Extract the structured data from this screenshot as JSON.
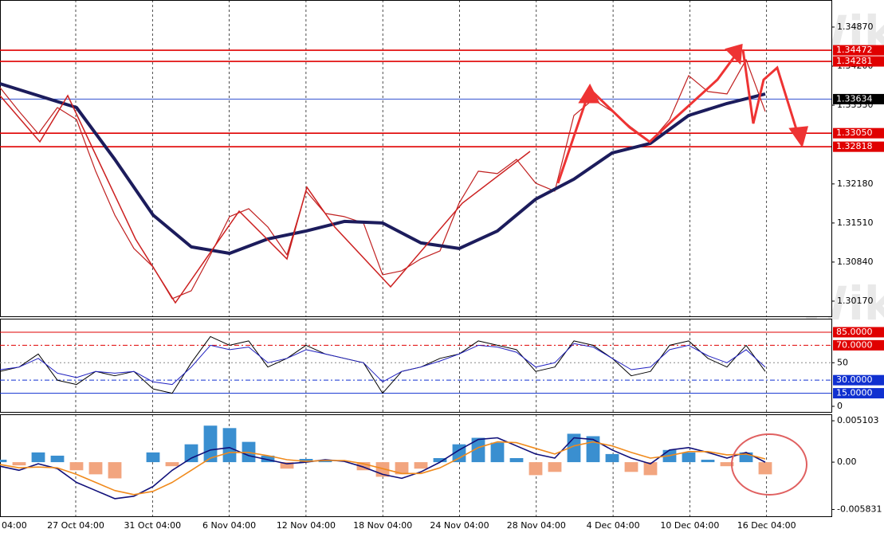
{
  "watermark": "WikiFX",
  "chart_data": [
    {
      "type": "line",
      "ylim": [
        1.2991,
        1.35334
      ],
      "yticks": [
        {
          "value": 1.3487,
          "label": "1.34870"
        },
        {
          "value": 1.342,
          "label": "1.34200"
        },
        {
          "value": 1.3353,
          "label": "1.33530"
        },
        {
          "value": 1.3218,
          "label": "1.32180"
        },
        {
          "value": 1.3151,
          "label": "1.31510"
        },
        {
          "value": 1.3084,
          "label": "1.30840"
        },
        {
          "value": 1.3017,
          "label": "1.30170"
        }
      ],
      "levels": [
        {
          "value": 1.34472,
          "label": "1.34472",
          "color": "#e00000"
        },
        {
          "value": 1.34281,
          "label": "1.34281",
          "color": "#e00000"
        },
        {
          "value": 1.33634,
          "label": "1.33634",
          "color": "#000000",
          "line_color": "#3050d0"
        },
        {
          "value": 1.3305,
          "label": "1.33050",
          "color": "#e00000"
        },
        {
          "value": 1.32818,
          "label": "1.32818",
          "color": "#e00000"
        }
      ],
      "series": [
        {
          "color": "#c02020",
          "width": 1.2,
          "values": [
            1.33832,
            1.33422,
            1.3304,
            1.3349,
            1.33285,
            1.32398,
            1.31646,
            1.31073,
            1.30758,
            1.30212,
            1.30349,
            1.30963,
            1.31619,
            1.31756,
            1.31441,
            1.30963,
            1.32056,
            1.31674,
            1.31619,
            1.3151,
            1.30622,
            1.3069,
            1.30895,
            1.31032,
            1.31851,
            1.32398,
            1.32357,
            1.32602,
            1.32193,
            1.32056,
            1.33354,
            1.33627,
            1.33422,
            1.33149,
            1.32903,
            1.33285,
            1.34037,
            1.33764,
            1.33723,
            1.3431,
            1.33422
          ]
        },
        {
          "color": "#1c1c5c",
          "width": 4,
          "values": [
            1.339,
            1.33695,
            1.3349,
            1.32602,
            1.31646,
            1.311,
            1.3099,
            1.31236,
            1.31373,
            1.31537,
            1.3151,
            1.31168,
            1.31073,
            1.31373,
            1.31919,
            1.32261,
            1.32712,
            1.32876,
            1.33354,
            1.33559,
            1.33723
          ]
        }
      ]
    },
    {
      "type": "line",
      "ylim": [
        -6.4,
        100.5
      ],
      "yticks": [
        50,
        0
      ],
      "levels": [
        {
          "value": 85,
          "label": "85.0000",
          "color": "#e00000"
        },
        {
          "value": 70,
          "label": "70.0000",
          "color": "#e00000",
          "dash": true
        },
        {
          "value": 30,
          "label": "30.0000",
          "color": "#1030d0",
          "dash": true
        },
        {
          "value": 15,
          "label": "15.0000",
          "color": "#1030d0"
        }
      ],
      "series": [
        {
          "color": "#000000",
          "width": 1,
          "values": [
            40,
            45,
            60,
            30,
            25,
            40,
            35,
            40,
            20,
            15,
            50,
            80,
            70,
            75,
            45,
            55,
            70,
            60,
            55,
            50,
            15,
            40,
            45,
            55,
            60,
            75,
            70,
            65,
            40,
            45,
            75,
            70,
            55,
            35,
            40,
            70,
            75,
            55,
            45,
            70,
            40
          ]
        },
        {
          "color": "#2020c0",
          "width": 1,
          "values": [
            42,
            45,
            55,
            38,
            33,
            40,
            38,
            40,
            28,
            25,
            45,
            70,
            65,
            68,
            50,
            55,
            65,
            60,
            55,
            50,
            28,
            40,
            45,
            52,
            60,
            70,
            68,
            62,
            45,
            50,
            72,
            68,
            55,
            42,
            45,
            65,
            70,
            58,
            50,
            65,
            45
          ]
        }
      ]
    },
    {
      "type": "combo",
      "ylim": [
        -0.00667,
        0.0059
      ],
      "yticks": [
        0.005103,
        {
          "value": 0,
          "label": "0.00"
        },
        -0.005831
      ],
      "xticks": [
        "04:00",
        "27 Oct 04:00",
        "31 Oct 04:00",
        "6 Nov 04:00",
        "12 Nov 04:00",
        "18 Nov 04:00",
        "24 Nov 04:00",
        "28 Nov 04:00",
        "4 Dec 04:00",
        "10 Dec 04:00",
        "16 Dec 04:00"
      ],
      "bars": {
        "positive": "#3a8fd0",
        "negative": "#f2a57f",
        "values": [
          0.0003,
          -0.0004,
          0.0012,
          0.0008,
          -0.001,
          -0.0015,
          -0.002,
          0.0,
          0.0012,
          -0.0005,
          0.0022,
          0.0045,
          0.0042,
          0.0025,
          0.0008,
          -0.0008,
          0.0004,
          0.0002,
          0.0,
          -0.001,
          -0.0018,
          -0.0015,
          -0.0008,
          0.0005,
          0.0022,
          0.003,
          0.0024,
          0.0005,
          -0.0016,
          -0.0012,
          0.0035,
          0.0032,
          0.001,
          -0.0012,
          -0.0016,
          0.0015,
          0.0012,
          0.0003,
          -0.0005,
          0.0012,
          -0.0015
        ]
      },
      "series": [
        {
          "color": "#10107a",
          "width": 1.6,
          "values": [
            -0.0005,
            -0.001,
            -0.0002,
            -0.0008,
            -0.0025,
            -0.0035,
            -0.0045,
            -0.0042,
            -0.003,
            -0.001,
            0.0005,
            0.0015,
            0.0018,
            0.0008,
            0.0003,
            -0.0002,
            0.0,
            0.0003,
            0.0001,
            -0.0006,
            -0.0015,
            -0.002,
            -0.0012,
            0.0,
            0.0015,
            0.0028,
            0.003,
            0.002,
            0.001,
            0.0005,
            0.003,
            0.0028,
            0.0015,
            0.0005,
            -0.0002,
            0.0015,
            0.0018,
            0.0012,
            0.0005,
            0.0012,
            0.0
          ]
        },
        {
          "color": "#f08a1c",
          "width": 1.6,
          "values": [
            -0.0003,
            -0.0007,
            -0.0006,
            -0.0007,
            -0.0015,
            -0.0025,
            -0.0035,
            -0.004,
            -0.0036,
            -0.0025,
            -0.001,
            0.0005,
            0.0012,
            0.0012,
            0.0008,
            0.0003,
            0.0001,
            0.0002,
            0.0002,
            -0.0002,
            -0.0008,
            -0.0014,
            -0.0014,
            -0.0007,
            0.0005,
            0.0018,
            0.0025,
            0.0024,
            0.0017,
            0.001,
            0.002,
            0.0025,
            0.002,
            0.0012,
            0.0005,
            0.0008,
            0.0013,
            0.0013,
            0.0009,
            0.001,
            0.0004
          ]
        }
      ]
    }
  ]
}
